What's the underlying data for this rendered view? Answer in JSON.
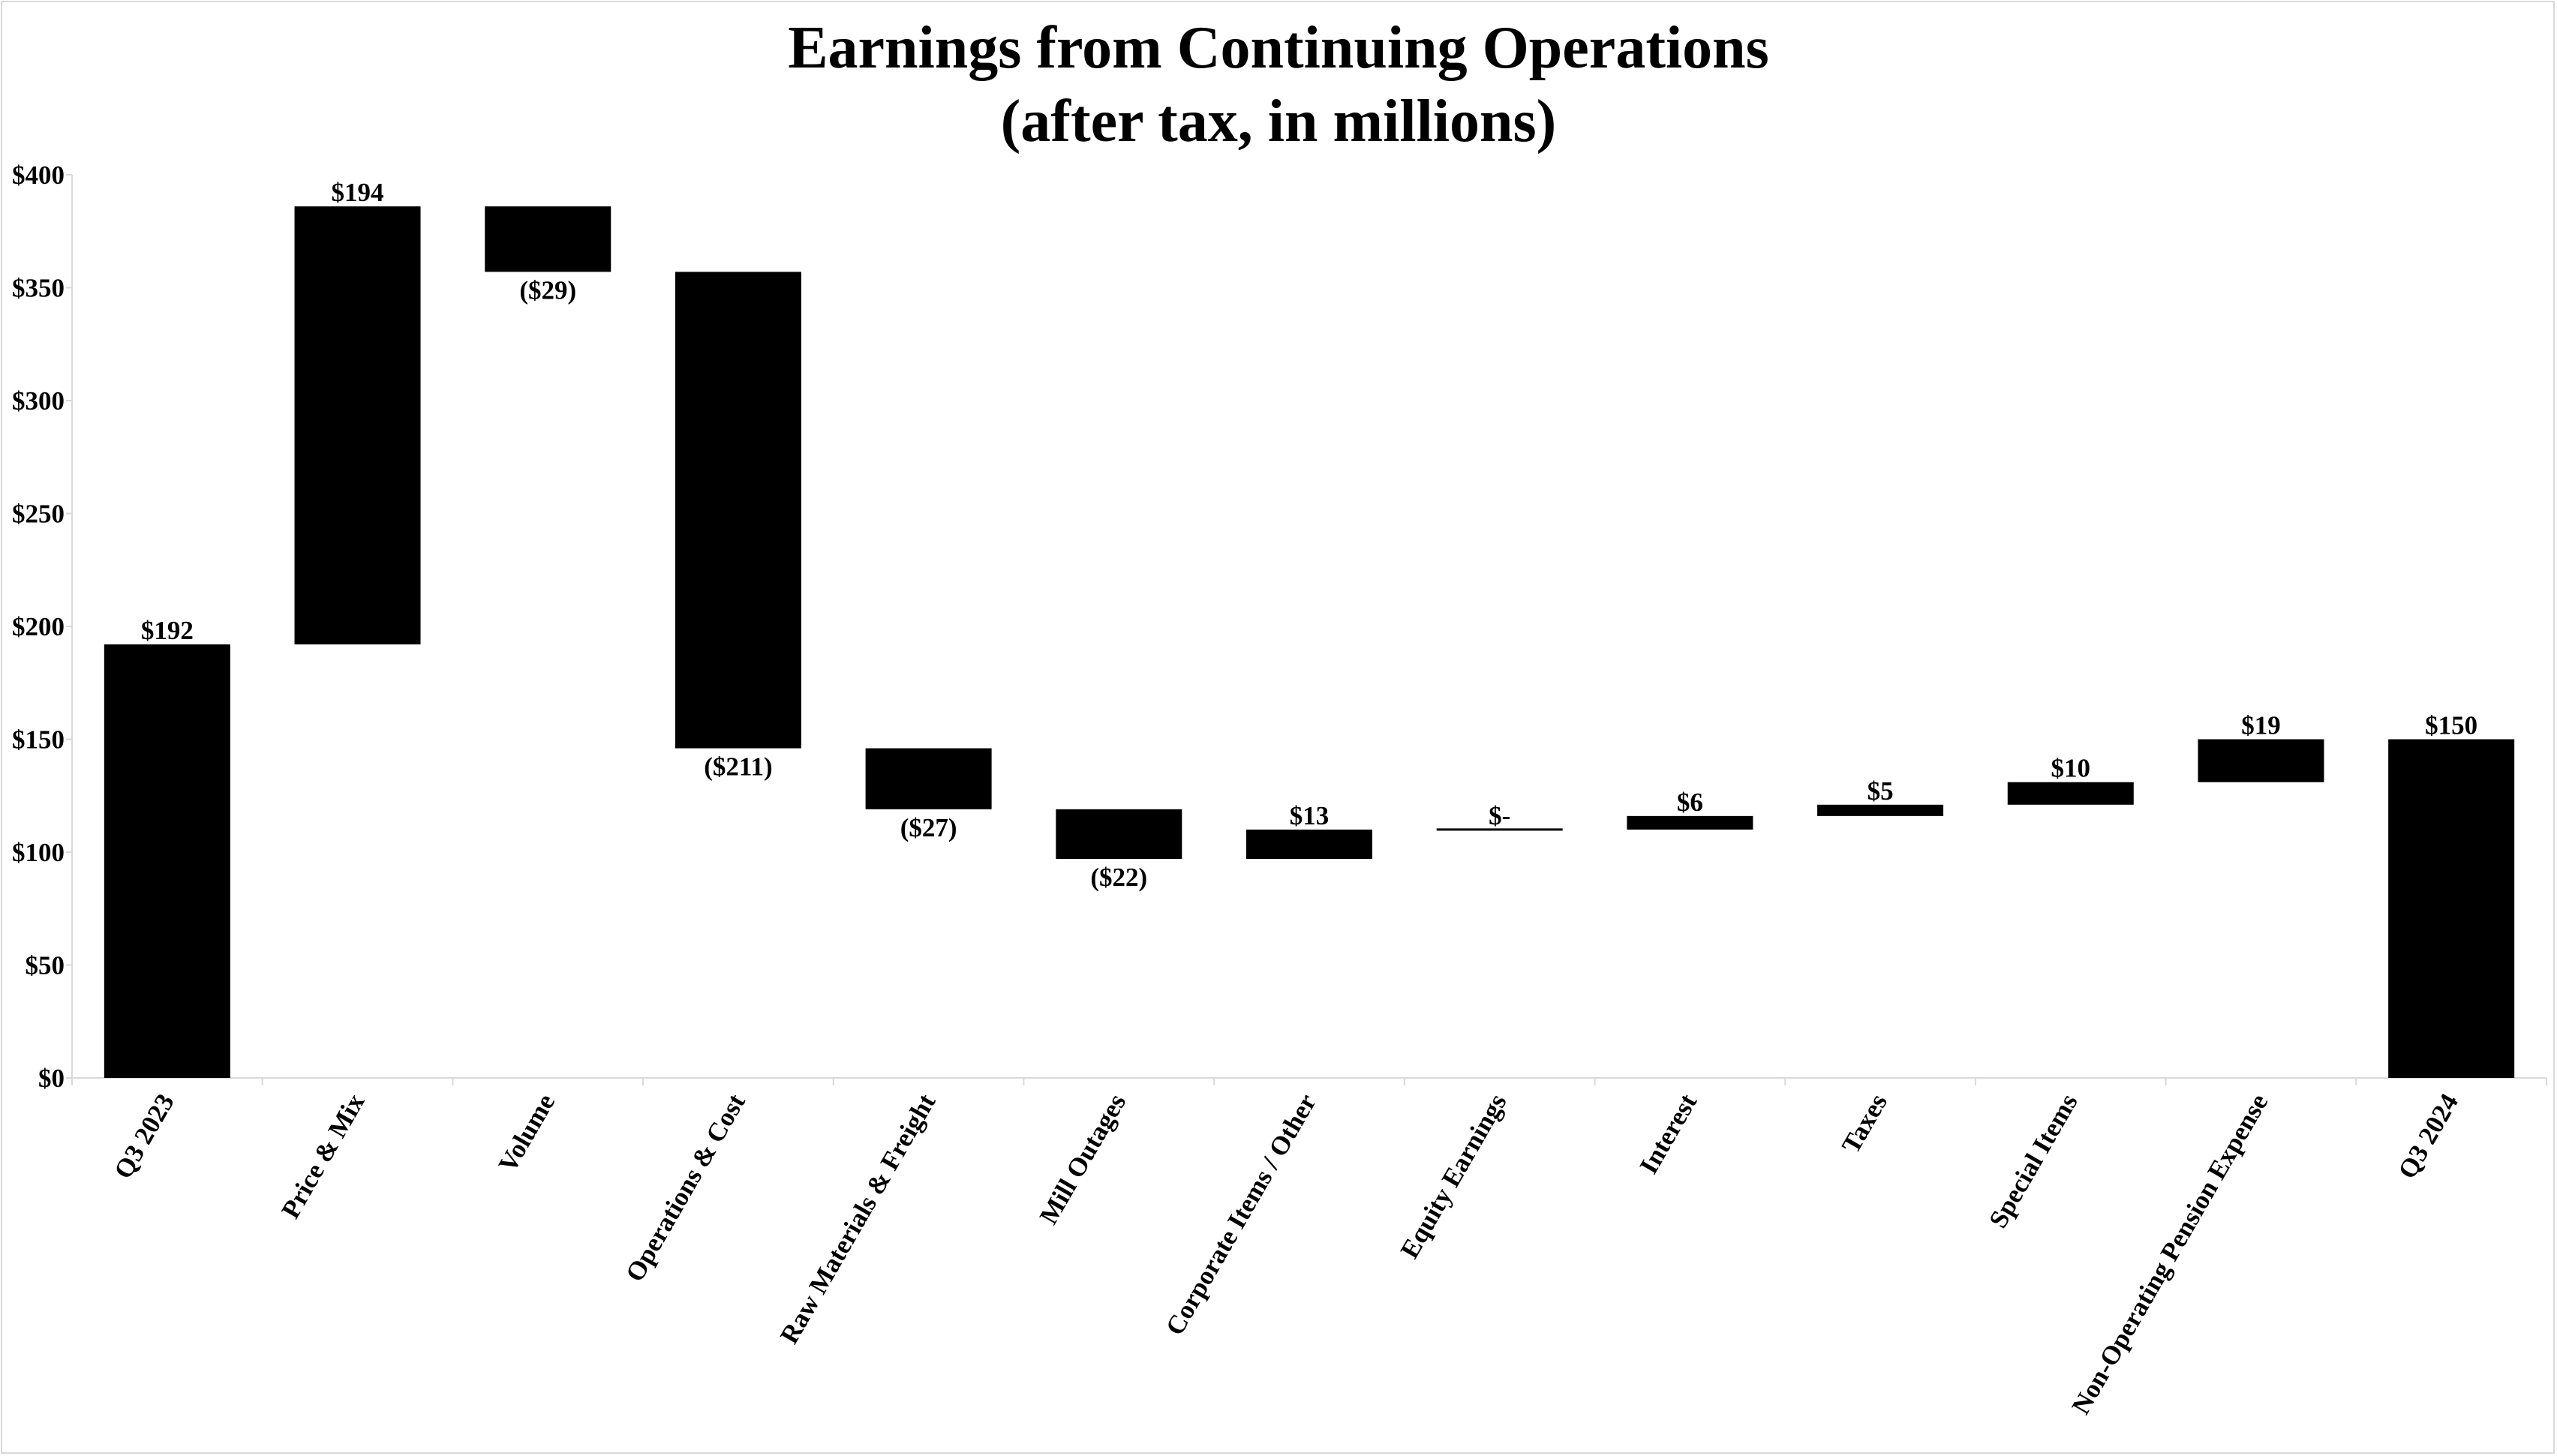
{
  "chart_data": {
    "type": "bar",
    "subtype": "waterfall",
    "title": "Earnings from Continuing Operations",
    "subtitle": "(after tax, in millions)",
    "xlabel": "",
    "ylabel": "",
    "ylim": [
      0,
      400
    ],
    "y_ticks": [
      0,
      50,
      100,
      150,
      200,
      250,
      300,
      350,
      400
    ],
    "y_tick_labels": [
      "$0",
      "$50",
      "$100",
      "$150",
      "$200",
      "$250",
      "$300",
      "$350",
      "$400"
    ],
    "grid": false,
    "bar_color": "#000000",
    "categories": [
      "Q3 2023",
      "Price & Mix",
      "Volume",
      "Operations & Cost",
      "Raw Materials & Freight",
      "Mill Outages",
      "Corporate Items / Other",
      "Equity Earnings",
      "Interest",
      "Taxes",
      "Special Items",
      "Non-Operating Pension Expense",
      "Q3 2024"
    ],
    "bars": [
      {
        "category": "Q3 2023",
        "kind": "total",
        "start": 0,
        "end": 192,
        "label": "$192",
        "label_pos": "above"
      },
      {
        "category": "Price & Mix",
        "kind": "delta",
        "start": 192,
        "end": 386,
        "label": "$194",
        "label_pos": "above"
      },
      {
        "category": "Volume",
        "kind": "delta",
        "start": 386,
        "end": 357,
        "label": "($29)",
        "label_pos": "below"
      },
      {
        "category": "Operations & Cost",
        "kind": "delta",
        "start": 357,
        "end": 146,
        "label": "($211)",
        "label_pos": "below"
      },
      {
        "category": "Raw Materials & Freight",
        "kind": "delta",
        "start": 146,
        "end": 119,
        "label": "($27)",
        "label_pos": "below"
      },
      {
        "category": "Mill Outages",
        "kind": "delta",
        "start": 119,
        "end": 97,
        "label": "($22)",
        "label_pos": "below"
      },
      {
        "category": "Corporate Items / Other",
        "kind": "delta",
        "start": 97,
        "end": 110,
        "label": "$13",
        "label_pos": "above"
      },
      {
        "category": "Equity Earnings",
        "kind": "delta",
        "start": 110,
        "end": 110,
        "label": "$-",
        "label_pos": "above"
      },
      {
        "category": "Interest",
        "kind": "delta",
        "start": 110,
        "end": 116,
        "label": "$6",
        "label_pos": "above"
      },
      {
        "category": "Taxes",
        "kind": "delta",
        "start": 116,
        "end": 121,
        "label": "$5",
        "label_pos": "above"
      },
      {
        "category": "Special Items",
        "kind": "delta",
        "start": 121,
        "end": 131,
        "label": "$10",
        "label_pos": "above"
      },
      {
        "category": "Non-Operating Pension Expense",
        "kind": "delta",
        "start": 131,
        "end": 150,
        "label": "$19",
        "label_pos": "above"
      },
      {
        "category": "Q3 2024",
        "kind": "total",
        "start": 0,
        "end": 150,
        "label": "$150",
        "label_pos": "above"
      }
    ]
  }
}
